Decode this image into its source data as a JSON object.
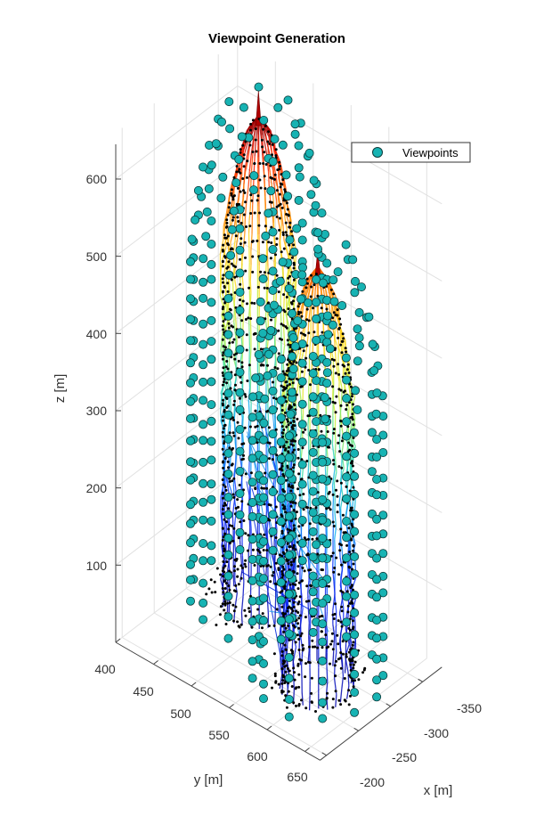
{
  "chart_data": {
    "type": "scatter",
    "title": "Viewpoint Generation",
    "xlabel": "x [m]",
    "ylabel": "y [m]",
    "zlabel": "z [m]",
    "x_ticks": [
      "-350",
      "-300",
      "-250",
      "-200"
    ],
    "y_ticks": [
      "400",
      "450",
      "500",
      "550",
      "600",
      "650"
    ],
    "z_ticks": [
      "100",
      "200",
      "300",
      "400",
      "500",
      "600"
    ],
    "xlim": [
      -380,
      -190
    ],
    "ylim": [
      400,
      670
    ],
    "zlim": [
      0,
      660
    ],
    "grid": true,
    "legend": {
      "position": "top-right",
      "entries": [
        "Viewpoints"
      ]
    },
    "series": [
      {
        "name": "Viewpoints",
        "marker": "circle",
        "color": "#17b3b3",
        "edge_color": "#0d3b3b",
        "structures": [
          {
            "cx": -330,
            "cy": 470,
            "top": 630,
            "spire_top": 665,
            "radius": 36
          },
          {
            "cx": -275,
            "cy": 595,
            "top": 540,
            "spire_top": 565,
            "radius": 36
          }
        ]
      },
      {
        "name": "",
        "marker": "dot",
        "color": "#000000"
      }
    ]
  }
}
